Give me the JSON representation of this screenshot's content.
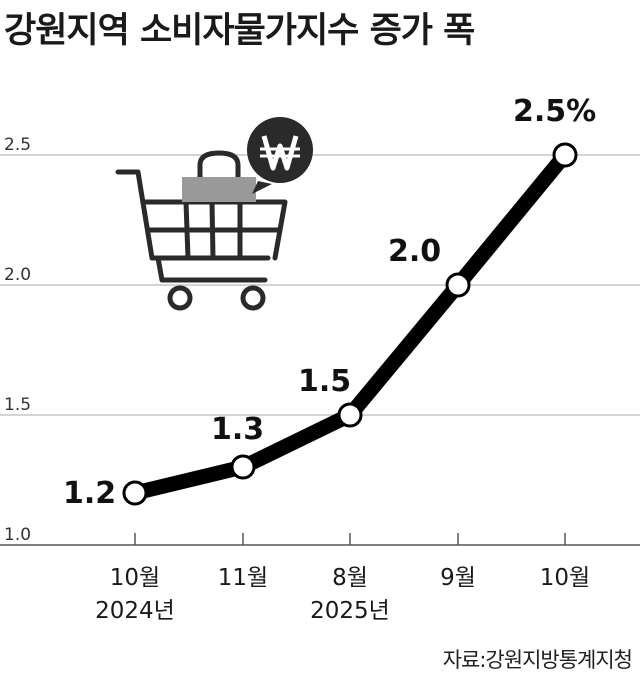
{
  "title": "강원지역 소비자물가지수 증가 폭",
  "source": "자료:강원지방통계지청",
  "colors": {
    "line": "#000000",
    "grid": "#bbbbbb",
    "icon": "#2a2a2a",
    "bag": "#999999"
  },
  "icon_names": [
    "shopping-cart-icon",
    "shopping-bag-icon",
    "won-coin-icon"
  ],
  "chart_data": {
    "type": "line",
    "title": "강원지역 소비자물가지수 증가 폭",
    "categories": [
      "10월",
      "11월",
      "8월",
      "9월",
      "10월"
    ],
    "year_labels": [
      "2024년",
      "",
      "2025년",
      "",
      ""
    ],
    "values": [
      1.2,
      1.3,
      1.5,
      2.0,
      2.5
    ],
    "data_labels": [
      "1.2",
      "1.3",
      "1.5",
      "2.0",
      "2.5%"
    ],
    "ylim": [
      1.0,
      2.5
    ],
    "yticks": [
      "1.0",
      "1.5",
      "2.0",
      "2.5"
    ],
    "grid": true,
    "xlabel": "",
    "ylabel": ""
  }
}
